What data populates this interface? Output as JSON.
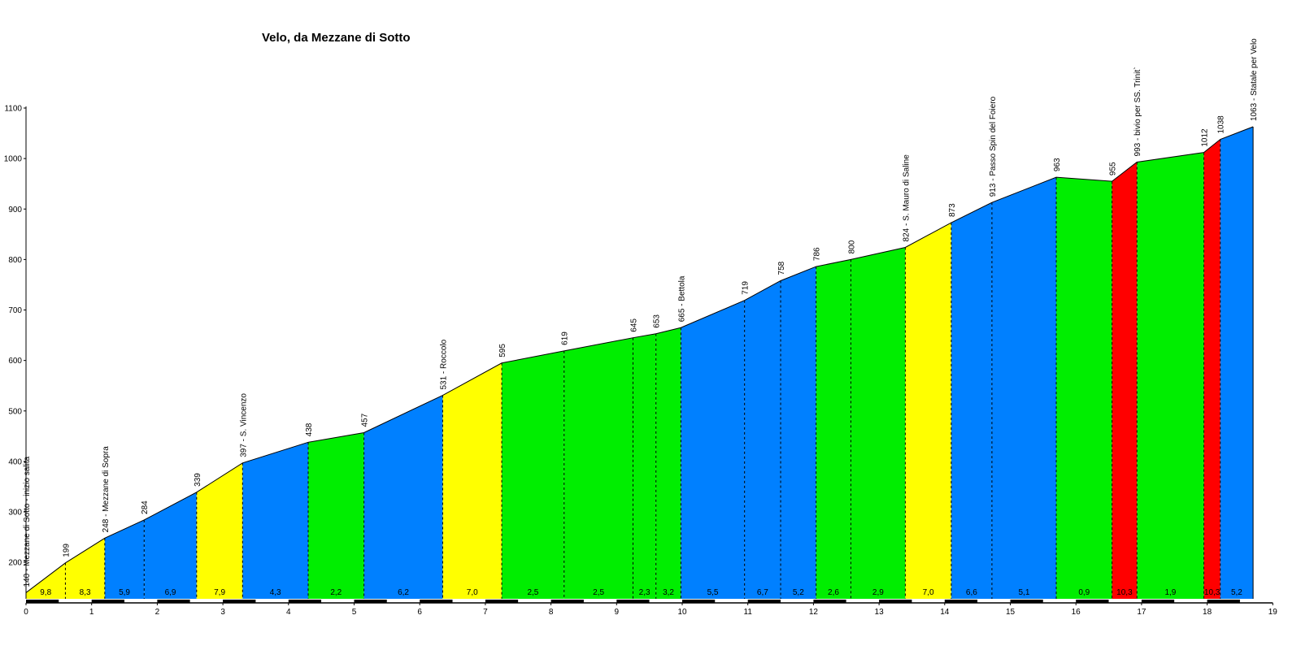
{
  "chart_data": {
    "type": "area",
    "title": "Velo, da Mezzane di Sotto",
    "xlabel": "",
    "ylabel": "",
    "xlim": [
      0,
      19
    ],
    "ylim": [
      125,
      1100
    ],
    "x_ticks": [
      "0",
      "1",
      "2",
      "3",
      "4",
      "5",
      "6",
      "7",
      "8",
      "9",
      "10",
      "11",
      "12",
      "13",
      "14",
      "15",
      "16",
      "17",
      "18",
      "19"
    ],
    "y_ticks": [
      "200",
      "300",
      "400",
      "500",
      "600",
      "700",
      "800",
      "900",
      "1000",
      "1100"
    ],
    "grade_colors": {
      "yellow": "#ffff00",
      "blue": "#0080ff",
      "green": "#00ee00",
      "red": "#ff0000"
    },
    "profile_points": [
      {
        "km": 0.0,
        "alt": 140,
        "label": "140 - Mezzane di Sotto - inizio salita"
      },
      {
        "km": 0.6,
        "alt": 199,
        "label": "199"
      },
      {
        "km": 1.2,
        "alt": 248,
        "label": "248 - Mezzane di Sopra"
      },
      {
        "km": 1.8,
        "alt": 284,
        "label": "284"
      },
      {
        "km": 2.6,
        "alt": 339,
        "label": "339"
      },
      {
        "km": 3.3,
        "alt": 397,
        "label": "397 - S. Vincenzo"
      },
      {
        "km": 4.3,
        "alt": 438,
        "label": "438"
      },
      {
        "km": 5.15,
        "alt": 457,
        "label": "457"
      },
      {
        "km": 6.35,
        "alt": 531,
        "label": "531 - Roccolo"
      },
      {
        "km": 7.25,
        "alt": 595,
        "label": "595"
      },
      {
        "km": 8.2,
        "alt": 619,
        "label": "619"
      },
      {
        "km": 9.25,
        "alt": 645,
        "label": "645"
      },
      {
        "km": 9.6,
        "alt": 653,
        "label": "653"
      },
      {
        "km": 9.98,
        "alt": 665,
        "label": "665 - Bettola"
      },
      {
        "km": 10.95,
        "alt": 719,
        "label": "719"
      },
      {
        "km": 11.5,
        "alt": 758,
        "label": "758"
      },
      {
        "km": 12.04,
        "alt": 786,
        "label": "786"
      },
      {
        "km": 12.57,
        "alt": 800,
        "label": "800"
      },
      {
        "km": 13.4,
        "alt": 824,
        "label": "824 - S. Mauro di Saline"
      },
      {
        "km": 14.1,
        "alt": 873,
        "label": "873"
      },
      {
        "km": 14.72,
        "alt": 913,
        "label": "913 - Passo Spin del Foiero"
      },
      {
        "km": 15.7,
        "alt": 963,
        "label": "963"
      },
      {
        "km": 16.55,
        "alt": 955,
        "label": "955"
      },
      {
        "km": 16.93,
        "alt": 993,
        "label": "993 - bivio per SS. Trinit`"
      },
      {
        "km": 17.95,
        "alt": 1012,
        "label": "1012"
      },
      {
        "km": 18.2,
        "alt": 1038,
        "label": "1038"
      },
      {
        "km": 18.7,
        "alt": 1063,
        "label": "1063 - Statale per Velo"
      }
    ],
    "segments": [
      {
        "grade": "9,8",
        "color": "yellow"
      },
      {
        "grade": "8,3",
        "color": "yellow"
      },
      {
        "grade": "5,9",
        "color": "blue"
      },
      {
        "grade": "6,9",
        "color": "blue"
      },
      {
        "grade": "7,9",
        "color": "yellow"
      },
      {
        "grade": "4,3",
        "color": "blue"
      },
      {
        "grade": "2,2",
        "color": "green"
      },
      {
        "grade": "6,2",
        "color": "blue"
      },
      {
        "grade": "7,0",
        "color": "yellow"
      },
      {
        "grade": "2,5",
        "color": "green"
      },
      {
        "grade": "2,5",
        "color": "green"
      },
      {
        "grade": "2,3",
        "color": "green"
      },
      {
        "grade": "3,2",
        "color": "green"
      },
      {
        "grade": "5,5",
        "color": "blue"
      },
      {
        "grade": "6,7",
        "color": "blue"
      },
      {
        "grade": "5,2",
        "color": "blue"
      },
      {
        "grade": "2,6",
        "color": "green"
      },
      {
        "grade": "2,9",
        "color": "green"
      },
      {
        "grade": "7,0",
        "color": "yellow"
      },
      {
        "grade": "6,6",
        "color": "blue"
      },
      {
        "grade": "5,1",
        "color": "blue"
      },
      {
        "grade": "0,9",
        "color": "green"
      },
      {
        "grade": "10,3",
        "color": "red"
      },
      {
        "grade": "1,9",
        "color": "green"
      },
      {
        "grade": "10,3",
        "color": "red"
      },
      {
        "grade": "5,2",
        "color": "blue"
      }
    ]
  }
}
